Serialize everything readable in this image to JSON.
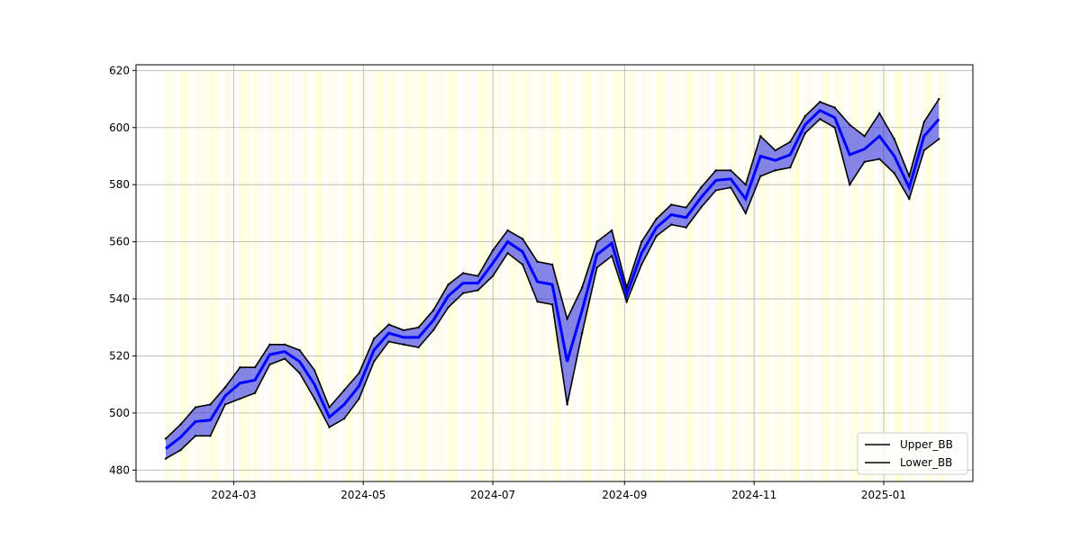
{
  "chart_data": {
    "type": "line",
    "title": "",
    "xlabel": "",
    "ylabel": "",
    "xlim": [
      "2024-01-15",
      "2025-02-12"
    ],
    "ylim": [
      476,
      622
    ],
    "grid": true,
    "legend": {
      "placement": "bottom-right",
      "entries": [
        "Upper_BB",
        "Lower_BB"
      ]
    },
    "y_ticks": [
      480,
      500,
      520,
      540,
      560,
      580,
      600,
      620
    ],
    "x_ticks": [
      "2024-03",
      "2024-05",
      "2024-07",
      "2024-09",
      "2024-11",
      "2025-01"
    ],
    "x_tick_dates": [
      "2024-03-01",
      "2024-05-01",
      "2024-07-01",
      "2024-09-01",
      "2024-11-01",
      "2025-01-01"
    ],
    "shaded_range": {
      "start": "2024-01-29",
      "end": "2025-01-31",
      "ylim": [
        476,
        620
      ]
    },
    "series": [
      {
        "name": "Upper_BB",
        "x": [
          "2024-01-29",
          "2024-02-05",
          "2024-02-12",
          "2024-02-19",
          "2024-02-26",
          "2024-03-04",
          "2024-03-11",
          "2024-03-18",
          "2024-03-25",
          "2024-04-01",
          "2024-04-08",
          "2024-04-15",
          "2024-04-22",
          "2024-04-29",
          "2024-05-06",
          "2024-05-13",
          "2024-05-20",
          "2024-05-27",
          "2024-06-03",
          "2024-06-10",
          "2024-06-17",
          "2024-06-24",
          "2024-07-01",
          "2024-07-08",
          "2024-07-15",
          "2024-07-22",
          "2024-07-29",
          "2024-08-05",
          "2024-08-12",
          "2024-08-19",
          "2024-08-26",
          "2024-09-02",
          "2024-09-09",
          "2024-09-16",
          "2024-09-23",
          "2024-09-30",
          "2024-10-07",
          "2024-10-14",
          "2024-10-21",
          "2024-10-28",
          "2024-11-04",
          "2024-11-11",
          "2024-11-18",
          "2024-11-25",
          "2024-12-02",
          "2024-12-09",
          "2024-12-16",
          "2024-12-23",
          "2024-12-30",
          "2025-01-06",
          "2025-01-13",
          "2025-01-20",
          "2025-01-27"
        ],
        "y": [
          491,
          496,
          502,
          503,
          509,
          516,
          516,
          524,
          524,
          522,
          515,
          502,
          508,
          514,
          526,
          531,
          529,
          530,
          536,
          545,
          549,
          548,
          557,
          564,
          561,
          553,
          552,
          533,
          544,
          560,
          564,
          544,
          560,
          568,
          573,
          572,
          579,
          585,
          585,
          580,
          597,
          592,
          595,
          604,
          609,
          607,
          601,
          597,
          605,
          596,
          583,
          602,
          610
        ]
      },
      {
        "name": "Lower_BB",
        "x": [
          "2024-01-29",
          "2024-02-05",
          "2024-02-12",
          "2024-02-19",
          "2024-02-26",
          "2024-03-04",
          "2024-03-11",
          "2024-03-18",
          "2024-03-25",
          "2024-04-01",
          "2024-04-08",
          "2024-04-15",
          "2024-04-22",
          "2024-04-29",
          "2024-05-06",
          "2024-05-13",
          "2024-05-20",
          "2024-05-27",
          "2024-06-03",
          "2024-06-10",
          "2024-06-17",
          "2024-06-24",
          "2024-07-01",
          "2024-07-08",
          "2024-07-15",
          "2024-07-22",
          "2024-07-29",
          "2024-08-05",
          "2024-08-12",
          "2024-08-19",
          "2024-08-26",
          "2024-09-02",
          "2024-09-09",
          "2024-09-16",
          "2024-09-23",
          "2024-09-30",
          "2024-10-07",
          "2024-10-14",
          "2024-10-21",
          "2024-10-28",
          "2024-11-04",
          "2024-11-11",
          "2024-11-18",
          "2024-11-25",
          "2024-12-02",
          "2024-12-09",
          "2024-12-16",
          "2024-12-23",
          "2024-12-30",
          "2025-01-06",
          "2025-01-13",
          "2025-01-20",
          "2025-01-27"
        ],
        "y": [
          484,
          487,
          492,
          492,
          503,
          505,
          507,
          517,
          519,
          514,
          505,
          495,
          498,
          505,
          518,
          525,
          524,
          523,
          529,
          537,
          542,
          543,
          548,
          556,
          552,
          539,
          538,
          503,
          528,
          551,
          555,
          539,
          552,
          562,
          566,
          565,
          572,
          578,
          579,
          570,
          583,
          585,
          586,
          598,
          603,
          600,
          580,
          588,
          589,
          584,
          575,
          592,
          596
        ]
      }
    ]
  }
}
